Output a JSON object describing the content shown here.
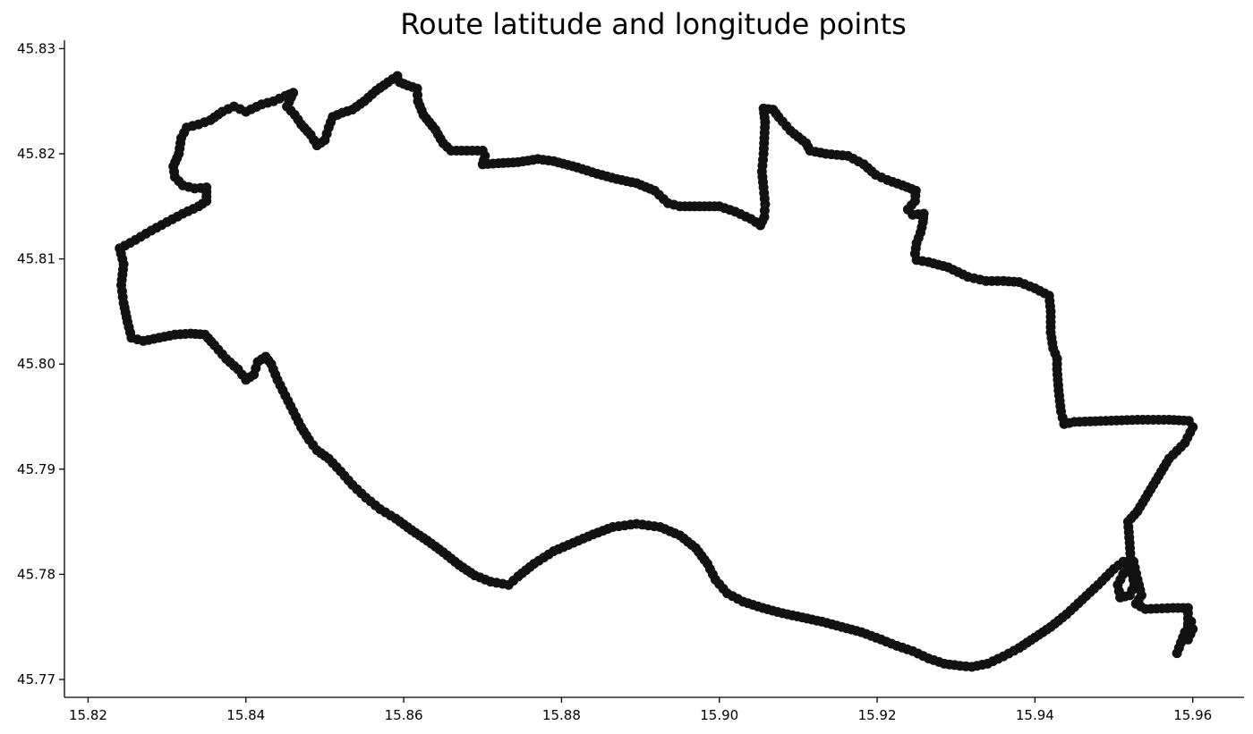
{
  "chart_data": {
    "type": "scatter",
    "title": "Route latitude and longitude points",
    "xlabel": "",
    "ylabel": "",
    "xlim": [
      15.817,
      15.9665
    ],
    "ylim": [
      45.7683,
      45.8308
    ],
    "xticks": [
      "15.82",
      "15.84",
      "15.86",
      "15.88",
      "15.90",
      "15.92",
      "15.94",
      "15.96"
    ],
    "yticks": [
      "45.77",
      "45.78",
      "45.79",
      "45.80",
      "45.81",
      "45.82",
      "45.83"
    ],
    "grid": false,
    "legend": "none",
    "marker_color": "#121212",
    "route": [
      [
        15.958,
        45.7725
      ],
      [
        15.959,
        45.7745
      ],
      [
        15.9598,
        45.7755
      ],
      [
        15.96,
        45.7748
      ],
      [
        15.9594,
        45.7738
      ],
      [
        15.9594,
        45.7768
      ],
      [
        15.9575,
        45.7768
      ],
      [
        15.954,
        45.7767
      ],
      [
        15.9528,
        45.7772
      ],
      [
        15.9535,
        45.778
      ],
      [
        15.953,
        45.7795
      ],
      [
        15.9525,
        45.7812
      ],
      [
        15.9515,
        45.7805
      ],
      [
        15.9505,
        45.779
      ],
      [
        15.9508,
        45.7778
      ],
      [
        15.952,
        45.778
      ],
      [
        15.9526,
        45.779
      ],
      [
        15.9522,
        45.7805
      ],
      [
        15.952,
        45.783
      ],
      [
        15.9518,
        45.785
      ],
      [
        15.953,
        45.786
      ],
      [
        15.955,
        45.7885
      ],
      [
        15.957,
        45.791
      ],
      [
        15.959,
        45.7925
      ],
      [
        15.96,
        45.794
      ],
      [
        15.9595,
        45.7946
      ],
      [
        15.957,
        45.7947
      ],
      [
        15.953,
        45.7947
      ],
      [
        15.949,
        45.7946
      ],
      [
        15.945,
        45.7945
      ],
      [
        15.9437,
        45.7943
      ],
      [
        15.9433,
        45.7955
      ],
      [
        15.943,
        45.7975
      ],
      [
        15.9428,
        45.7995
      ],
      [
        15.9428,
        45.8005
      ],
      [
        15.9423,
        45.8015
      ],
      [
        15.942,
        45.803
      ],
      [
        15.942,
        45.805
      ],
      [
        15.9418,
        45.8065
      ],
      [
        15.94,
        45.8072
      ],
      [
        15.938,
        45.8078
      ],
      [
        15.936,
        45.8079
      ],
      [
        15.9338,
        45.8079
      ],
      [
        15.9315,
        45.8083
      ],
      [
        15.929,
        45.8092
      ],
      [
        15.9265,
        45.8097
      ],
      [
        15.925,
        45.8099
      ],
      [
        15.9248,
        45.8105
      ],
      [
        15.925,
        45.8115
      ],
      [
        15.9255,
        45.8125
      ],
      [
        15.9258,
        45.8135
      ],
      [
        15.9259,
        45.8143
      ],
      [
        15.9245,
        45.8142
      ],
      [
        15.9239,
        45.8147
      ],
      [
        15.9248,
        45.8155
      ],
      [
        15.9249,
        45.8165
      ],
      [
        15.9232,
        45.817
      ],
      [
        15.9213,
        45.8175
      ],
      [
        15.9198,
        45.818
      ],
      [
        15.9183,
        45.819
      ],
      [
        15.9163,
        45.8198
      ],
      [
        15.9135,
        45.82
      ],
      [
        15.9115,
        45.8203
      ],
      [
        15.911,
        45.821
      ],
      [
        15.909,
        45.8222
      ],
      [
        15.9075,
        45.8235
      ],
      [
        15.9068,
        45.8242
      ],
      [
        15.9056,
        45.8243
      ],
      [
        15.9058,
        45.823
      ],
      [
        15.9057,
        45.8215
      ],
      [
        15.9056,
        45.82
      ],
      [
        15.9054,
        45.8183
      ],
      [
        15.9056,
        45.8168
      ],
      [
        15.9058,
        45.8152
      ],
      [
        15.9057,
        45.814
      ],
      [
        15.9052,
        45.8132
      ],
      [
        15.904,
        45.8138
      ],
      [
        15.902,
        45.8145
      ],
      [
        15.9,
        45.815
      ],
      [
        15.8975,
        45.815
      ],
      [
        15.895,
        45.815
      ],
      [
        15.8935,
        45.8153
      ],
      [
        15.8918,
        45.8165
      ],
      [
        15.8895,
        45.8172
      ],
      [
        15.887,
        45.8176
      ],
      [
        15.8845,
        45.8181
      ],
      [
        15.882,
        45.8187
      ],
      [
        15.879,
        45.8193
      ],
      [
        15.877,
        45.8195
      ],
      [
        15.8745,
        45.8192
      ],
      [
        15.872,
        45.8191
      ],
      [
        15.87,
        45.819
      ],
      [
        15.8703,
        45.8198
      ],
      [
        15.87,
        45.8203
      ],
      [
        15.868,
        45.8203
      ],
      [
        15.866,
        45.8203
      ],
      [
        15.865,
        45.821
      ],
      [
        15.864,
        45.8223
      ],
      [
        15.8625,
        45.8237
      ],
      [
        15.8618,
        45.825
      ],
      [
        15.8617,
        45.8262
      ],
      [
        15.8605,
        45.8265
      ],
      [
        15.8595,
        45.8268
      ],
      [
        15.8592,
        45.8274
      ],
      [
        15.858,
        45.8268
      ],
      [
        15.8565,
        45.826
      ],
      [
        15.855,
        45.825
      ],
      [
        15.8535,
        45.8242
      ],
      [
        15.8522,
        45.8239
      ],
      [
        15.851,
        45.8235
      ],
      [
        15.8505,
        45.8225
      ],
      [
        15.85,
        45.8213
      ],
      [
        15.849,
        45.8208
      ],
      [
        15.8482,
        45.8218
      ],
      [
        15.847,
        45.8228
      ],
      [
        15.8462,
        45.8237
      ],
      [
        15.8452,
        45.8245
      ],
      [
        15.846,
        45.8258
      ],
      [
        15.845,
        45.8255
      ],
      [
        15.8435,
        45.825
      ],
      [
        15.842,
        45.8247
      ],
      [
        15.84,
        45.824
      ],
      [
        15.8385,
        45.8245
      ],
      [
        15.837,
        45.824
      ],
      [
        15.8355,
        45.8232
      ],
      [
        15.834,
        45.8228
      ],
      [
        15.8325,
        45.8225
      ],
      [
        15.8318,
        45.8215
      ],
      [
        15.8315,
        45.82
      ],
      [
        15.8308,
        45.8188
      ],
      [
        15.831,
        45.8178
      ],
      [
        15.832,
        45.817
      ],
      [
        15.8335,
        45.8167
      ],
      [
        15.835,
        45.8168
      ],
      [
        15.835,
        45.8155
      ],
      [
        15.834,
        45.815
      ],
      [
        15.832,
        45.8143
      ],
      [
        15.83,
        45.8135
      ],
      [
        15.828,
        45.8127
      ],
      [
        15.826,
        45.8118
      ],
      [
        15.824,
        45.811
      ],
      [
        15.8245,
        45.8095
      ],
      [
        15.8242,
        45.8075
      ],
      [
        15.8245,
        45.8058
      ],
      [
        15.825,
        45.804
      ],
      [
        15.8255,
        45.8025
      ],
      [
        15.827,
        45.8022
      ],
      [
        15.829,
        45.8025
      ],
      [
        15.831,
        45.8028
      ],
      [
        15.833,
        45.8029
      ],
      [
        15.8348,
        45.8028
      ],
      [
        15.836,
        45.8018
      ],
      [
        15.8375,
        45.8005
      ],
      [
        15.839,
        45.7995
      ],
      [
        15.84,
        45.7985
      ],
      [
        15.841,
        45.799
      ],
      [
        15.8415,
        45.8002
      ],
      [
        15.8425,
        45.8007
      ],
      [
        15.8432,
        45.8
      ],
      [
        15.844,
        45.7985
      ],
      [
        15.845,
        45.797
      ],
      [
        15.846,
        45.7955
      ],
      [
        15.847,
        45.794
      ],
      [
        15.848,
        45.7928
      ],
      [
        15.849,
        45.7918
      ],
      [
        15.8505,
        45.791
      ],
      [
        15.852,
        45.7898
      ],
      [
        15.8535,
        45.7885
      ],
      [
        15.8552,
        45.7873
      ],
      [
        15.857,
        45.7862
      ],
      [
        15.859,
        45.7853
      ],
      [
        15.861,
        45.7842
      ],
      [
        15.863,
        45.7832
      ],
      [
        15.865,
        45.7821
      ],
      [
        15.867,
        45.7809
      ],
      [
        15.869,
        45.7799
      ],
      [
        15.871,
        45.7793
      ],
      [
        15.8733,
        45.779
      ],
      [
        15.8745,
        45.7798
      ],
      [
        15.8765,
        45.781
      ],
      [
        15.879,
        45.7822
      ],
      [
        15.8815,
        45.783
      ],
      [
        15.884,
        45.7838
      ],
      [
        15.8865,
        45.7845
      ],
      [
        15.8895,
        45.7848
      ],
      [
        15.8925,
        45.7845
      ],
      [
        15.895,
        45.7837
      ],
      [
        15.897,
        45.7825
      ],
      [
        15.8985,
        45.781
      ],
      [
        15.8995,
        45.7795
      ],
      [
        15.901,
        45.7782
      ],
      [
        15.903,
        45.7774
      ],
      [
        15.9055,
        45.7768
      ],
      [
        15.908,
        45.7763
      ],
      [
        15.9105,
        45.7759
      ],
      [
        15.913,
        45.7755
      ],
      [
        15.9155,
        45.775
      ],
      [
        15.918,
        45.7745
      ],
      [
        15.9205,
        45.7738
      ],
      [
        15.9225,
        45.7732
      ],
      [
        15.9245,
        45.7727
      ],
      [
        15.9265,
        45.772
      ],
      [
        15.9285,
        45.7715
      ],
      [
        15.9305,
        45.7713
      ],
      [
        15.932,
        45.7712
      ],
      [
        15.934,
        45.7715
      ],
      [
        15.936,
        45.7722
      ],
      [
        15.938,
        45.773
      ],
      [
        15.94,
        45.774
      ],
      [
        15.942,
        45.775
      ],
      [
        15.944,
        45.7762
      ],
      [
        15.946,
        45.7776
      ],
      [
        15.948,
        45.779
      ],
      [
        15.95,
        45.7805
      ],
      [
        15.9512,
        45.7812
      ]
    ]
  }
}
